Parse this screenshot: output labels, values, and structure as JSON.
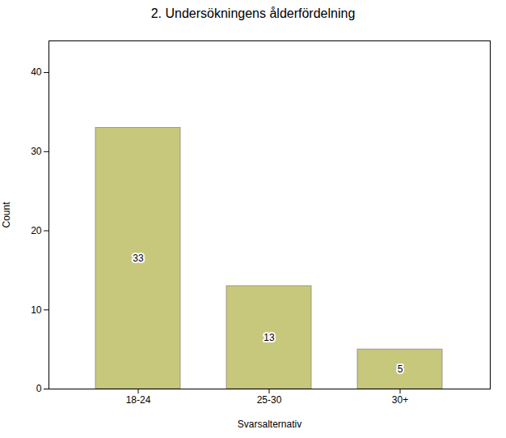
{
  "chart_data": {
    "type": "bar",
    "title": "2. Undersökningens ålderfördelning",
    "categories": [
      "18-24",
      "25-30",
      "30+"
    ],
    "values": [
      33,
      13,
      5
    ],
    "color": "#c8c87d",
    "xlabel": "Svarsalternativ",
    "ylabel": "Count",
    "ylim": [
      0,
      44
    ],
    "yticks": [
      0,
      10,
      20,
      30,
      40
    ],
    "grid": false,
    "data_labels": true
  }
}
